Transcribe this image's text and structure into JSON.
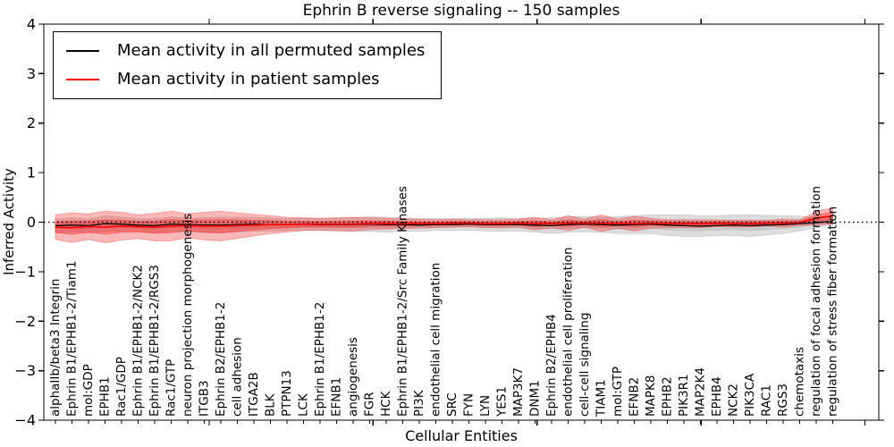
{
  "chart_data": {
    "type": "line",
    "title": "Ephrin B reverse signaling -- 150 samples",
    "xlabel": "Cellular Entities",
    "ylabel": "Inferred Activity",
    "ylim": [
      -4,
      4
    ],
    "yticks": {
      "values": [
        4,
        3,
        2,
        1,
        0,
        -1,
        -2,
        -3,
        -4
      ],
      "labels": [
        "4",
        "3",
        "2",
        "1",
        "0",
        "−1",
        "−2",
        "−3",
        "−4"
      ]
    },
    "grid": false,
    "legend_position": "upper left",
    "zero_reference_line": {
      "y": 0,
      "style": "dotted",
      "color": "#000000"
    },
    "categories": [
      "alphaIIb/beta3 Integrin",
      "Ephrin B1/EPHB1-2/Tiam1",
      "mol:GDP",
      "EPHB1",
      "Rac1/GDP",
      "Ephrin B1/EPHB1-2/NCK2",
      "Ephrin B1/EPHB1-2/RGS3",
      "Rac1/GTP",
      "neuron projection morphogenesis",
      "ITGB3",
      "Ephrin B2/EPHB1-2",
      "cell adhesion",
      "ITGA2B",
      "BLK",
      "PTPN13",
      "LCK",
      "Ephrin B1/EPHB1-2",
      "EFNB1",
      "angiogenesis",
      "FGR",
      "HCK",
      "Ephrin B1/EPHB1-2/Src Family Kinases",
      "PI3K",
      "endothelial cell migration",
      "SRC",
      "FYN",
      "LYN",
      "YES1",
      "MAP3K7",
      "DNM1",
      "Ephrin B2/EPHB4",
      "endothelial cell proliferation",
      "cell-cell signaling",
      "TIAM1",
      "mol:GTP",
      "EFNB2",
      "MAPK8",
      "EPHB2",
      "PIK3R1",
      "MAP2K4",
      "EPHB4",
      "NCK2",
      "PIK3CA",
      "RAC1",
      "RGS3",
      "chemotaxis",
      "regulation of focal adhesion formation",
      "regulation of stress fiber formation"
    ],
    "series": [
      {
        "name": "Mean activity in all permuted samples",
        "color": "#000000",
        "band_color": "#909090",
        "values": [
          -0.07,
          -0.06,
          -0.07,
          -0.03,
          -0.04,
          -0.06,
          -0.07,
          -0.04,
          -0.05,
          -0.06,
          -0.06,
          -0.05,
          -0.04,
          -0.05,
          -0.05,
          -0.04,
          -0.05,
          -0.05,
          -0.05,
          -0.04,
          -0.05,
          -0.05,
          -0.06,
          -0.05,
          -0.05,
          -0.04,
          -0.05,
          -0.05,
          -0.05,
          -0.06,
          -0.07,
          -0.05,
          -0.04,
          -0.05,
          -0.06,
          -0.05,
          -0.04,
          -0.06,
          -0.07,
          -0.08,
          -0.07,
          -0.06,
          -0.07,
          -0.06,
          -0.05,
          -0.03,
          -0.01,
          0.02
        ],
        "band_halfwidth": [
          0.13,
          0.15,
          0.13,
          0.16,
          0.14,
          0.13,
          0.14,
          0.15,
          0.13,
          0.15,
          0.16,
          0.15,
          0.14,
          0.13,
          0.12,
          0.12,
          0.12,
          0.13,
          0.14,
          0.15,
          0.15,
          0.14,
          0.13,
          0.12,
          0.12,
          0.12,
          0.13,
          0.14,
          0.13,
          0.14,
          0.16,
          0.15,
          0.16,
          0.15,
          0.17,
          0.18,
          0.19,
          0.21,
          0.22,
          0.21,
          0.2,
          0.21,
          0.22,
          0.2,
          0.18,
          0.15,
          0.1,
          0.08
        ]
      },
      {
        "name": "Mean activity in patient samples",
        "color": "#ff0000",
        "band_color": "#ff0000",
        "values": [
          -0.1,
          -0.11,
          -0.09,
          -0.1,
          -0.08,
          -0.09,
          -0.1,
          -0.08,
          -0.07,
          -0.08,
          -0.08,
          -0.07,
          -0.06,
          -0.05,
          -0.05,
          -0.04,
          -0.04,
          -0.04,
          -0.04,
          -0.03,
          -0.03,
          -0.03,
          -0.03,
          -0.03,
          -0.02,
          -0.02,
          -0.03,
          -0.03,
          -0.02,
          -0.03,
          -0.03,
          -0.02,
          -0.02,
          -0.02,
          -0.03,
          -0.03,
          -0.02,
          -0.03,
          -0.03,
          -0.03,
          -0.02,
          -0.03,
          -0.03,
          -0.02,
          -0.02,
          -0.01,
          0.08,
          0.13
        ],
        "band_halfwidth": [
          0.25,
          0.3,
          0.26,
          0.32,
          0.28,
          0.24,
          0.28,
          0.3,
          0.24,
          0.28,
          0.3,
          0.26,
          0.22,
          0.18,
          0.15,
          0.13,
          0.12,
          0.13,
          0.14,
          0.12,
          0.11,
          0.1,
          0.09,
          0.08,
          0.08,
          0.07,
          0.08,
          0.08,
          0.08,
          0.13,
          0.08,
          0.15,
          0.08,
          0.17,
          0.09,
          0.15,
          0.1,
          0.08,
          0.08,
          0.08,
          0.07,
          0.07,
          0.07,
          0.06,
          0.08,
          0.06,
          0.13,
          0.17
        ]
      }
    ]
  }
}
